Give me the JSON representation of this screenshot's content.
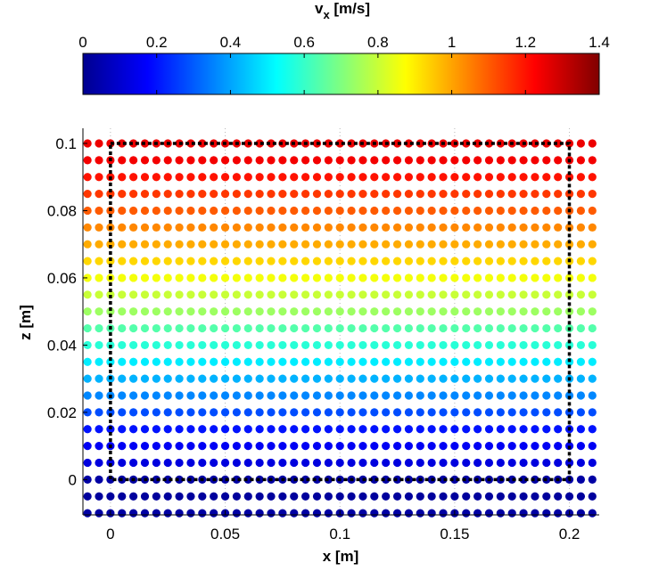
{
  "chart_data": {
    "type": "scatter",
    "title_main": "v",
    "title_sub": "x",
    "title_unit": " [m/s]",
    "xlabel": "x [m]",
    "ylabel": "z [m]",
    "xlim": [
      -0.012,
      0.213
    ],
    "ylim": [
      -0.0105,
      0.1045
    ],
    "x_ticks": [
      "0",
      "0.05",
      "0.1",
      "0.15",
      "0.2"
    ],
    "y_ticks": [
      "0",
      "0.02",
      "0.04",
      "0.06",
      "0.08",
      "0.1"
    ],
    "colorbar": {
      "range": [
        0,
        1.4
      ],
      "tick_labels": [
        "0",
        "0.2",
        "0.4",
        "0.6",
        "0.8",
        "1",
        "1.2",
        "1.4"
      ],
      "colormap": "jet",
      "position": "top"
    },
    "grid": "vertical-dotted",
    "dashed_box": {
      "x": [
        0,
        0.2
      ],
      "z": [
        0,
        0.1
      ]
    },
    "point_rows_description": "each row of points at height z has value vx",
    "x_range": [
      -0.01,
      0.21
    ],
    "x_step": 0.005,
    "rows": [
      {
        "z": -0.01,
        "vx": 0.05
      },
      {
        "z": -0.005,
        "vx": 0.04
      },
      {
        "z": 0.0,
        "vx": 0.05
      },
      {
        "z": 0.005,
        "vx": 0.13
      },
      {
        "z": 0.01,
        "vx": 0.16
      },
      {
        "z": 0.015,
        "vx": 0.2
      },
      {
        "z": 0.02,
        "vx": 0.28
      },
      {
        "z": 0.025,
        "vx": 0.36
      },
      {
        "z": 0.03,
        "vx": 0.42
      },
      {
        "z": 0.035,
        "vx": 0.5
      },
      {
        "z": 0.04,
        "vx": 0.58
      },
      {
        "z": 0.045,
        "vx": 0.64
      },
      {
        "z": 0.05,
        "vx": 0.74
      },
      {
        "z": 0.055,
        "vx": 0.8
      },
      {
        "z": 0.06,
        "vx": 0.86
      },
      {
        "z": 0.065,
        "vx": 0.93
      },
      {
        "z": 0.07,
        "vx": 0.99
      },
      {
        "z": 0.075,
        "vx": 1.04
      },
      {
        "z": 0.08,
        "vx": 1.1
      },
      {
        "z": 0.085,
        "vx": 1.15
      },
      {
        "z": 0.09,
        "vx": 1.2
      },
      {
        "z": 0.095,
        "vx": 1.24
      },
      {
        "z": 0.1,
        "vx": 1.25
      }
    ]
  }
}
